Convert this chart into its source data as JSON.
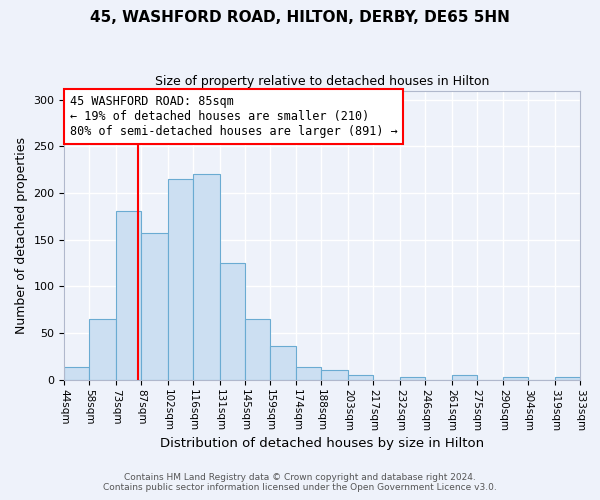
{
  "title": "45, WASHFORD ROAD, HILTON, DERBY, DE65 5HN",
  "subtitle": "Size of property relative to detached houses in Hilton",
  "xlabel": "Distribution of detached houses by size in Hilton",
  "ylabel": "Number of detached properties",
  "bin_labels": [
    "44sqm",
    "58sqm",
    "73sqm",
    "87sqm",
    "102sqm",
    "116sqm",
    "131sqm",
    "145sqm",
    "159sqm",
    "174sqm",
    "188sqm",
    "203sqm",
    "217sqm",
    "232sqm",
    "246sqm",
    "261sqm",
    "275sqm",
    "290sqm",
    "304sqm",
    "319sqm",
    "333sqm"
  ],
  "bar_heights": [
    13,
    65,
    181,
    157,
    215,
    220,
    125,
    65,
    36,
    14,
    10,
    5,
    0,
    3,
    0,
    5,
    0,
    3,
    0,
    3
  ],
  "bin_edges": [
    44,
    58,
    73,
    87,
    102,
    116,
    131,
    145,
    159,
    174,
    188,
    203,
    217,
    232,
    246,
    261,
    275,
    290,
    304,
    319,
    333
  ],
  "bar_color": "#ccdff2",
  "bar_edge_color": "#6aabd2",
  "red_line_x": 85,
  "annotation_line1": "45 WASHFORD ROAD: 85sqm",
  "annotation_line2": "← 19% of detached houses are smaller (210)",
  "annotation_line3": "80% of semi-detached houses are larger (891) →",
  "annotation_box_color": "white",
  "annotation_box_edge_color": "red",
  "ylim": [
    0,
    310
  ],
  "yticks": [
    0,
    50,
    100,
    150,
    200,
    250,
    300
  ],
  "footer_line1": "Contains HM Land Registry data © Crown copyright and database right 2024.",
  "footer_line2": "Contains public sector information licensed under the Open Government Licence v3.0.",
  "background_color": "#eef2fa",
  "axes_background_color": "#eef2fa",
  "grid_color": "#ffffff",
  "spine_color": "#b0b8cc"
}
